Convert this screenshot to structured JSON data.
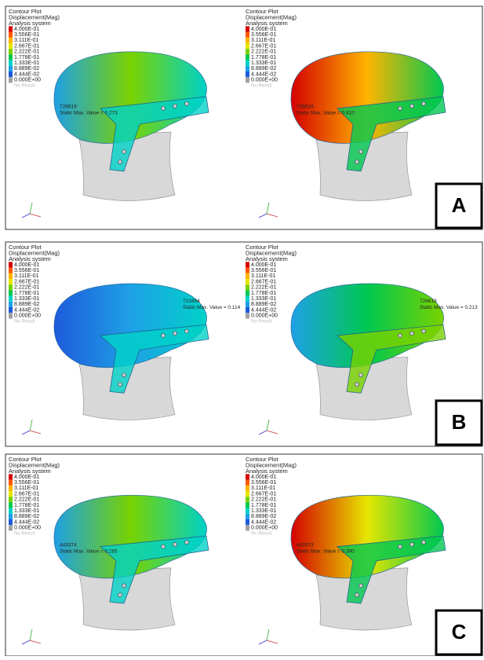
{
  "legend": {
    "title": [
      "Contour Plot",
      "Displacement(Mag)",
      "Analysis system"
    ],
    "levels": [
      {
        "label": "4.000E-01",
        "color": "#d40000"
      },
      {
        "label": "3.556E-01",
        "color": "#ff5a00"
      },
      {
        "label": "3.111E-01",
        "color": "#ffb400"
      },
      {
        "label": "2.667E-01",
        "color": "#e6e600"
      },
      {
        "label": "2.222E-01",
        "color": "#78d200"
      },
      {
        "label": "1.778E-01",
        "color": "#00c850"
      },
      {
        "label": "1.333E-01",
        "color": "#00d2c8"
      },
      {
        "label": "8.889E-02",
        "color": "#1ea0e6"
      },
      {
        "label": "4.444E-02",
        "color": "#1e5adc"
      },
      {
        "label": "0.000E+00",
        "color": "#a0a0a0"
      }
    ],
    "no_result": "No Result"
  },
  "panels": [
    {
      "label": "A",
      "plots": [
        {
          "node": "726619",
          "max_label": "Static Max. Value = 0.273"
        },
        {
          "node": "726619",
          "max_label": "Static Max. Value = 0.410"
        }
      ]
    },
    {
      "label": "B",
      "plots": [
        {
          "node": "721654",
          "max_label": "Static Max. Value = 0.114"
        },
        {
          "node": "726619",
          "max_label": "Static Max. Value = 0.213"
        }
      ]
    },
    {
      "label": "C",
      "plots": [
        {
          "node": "443374",
          "max_label": "Static Max. Value = 0.265"
        },
        {
          "node": "443373",
          "max_label": "Static Max. Value = 0.390"
        }
      ]
    }
  ]
}
